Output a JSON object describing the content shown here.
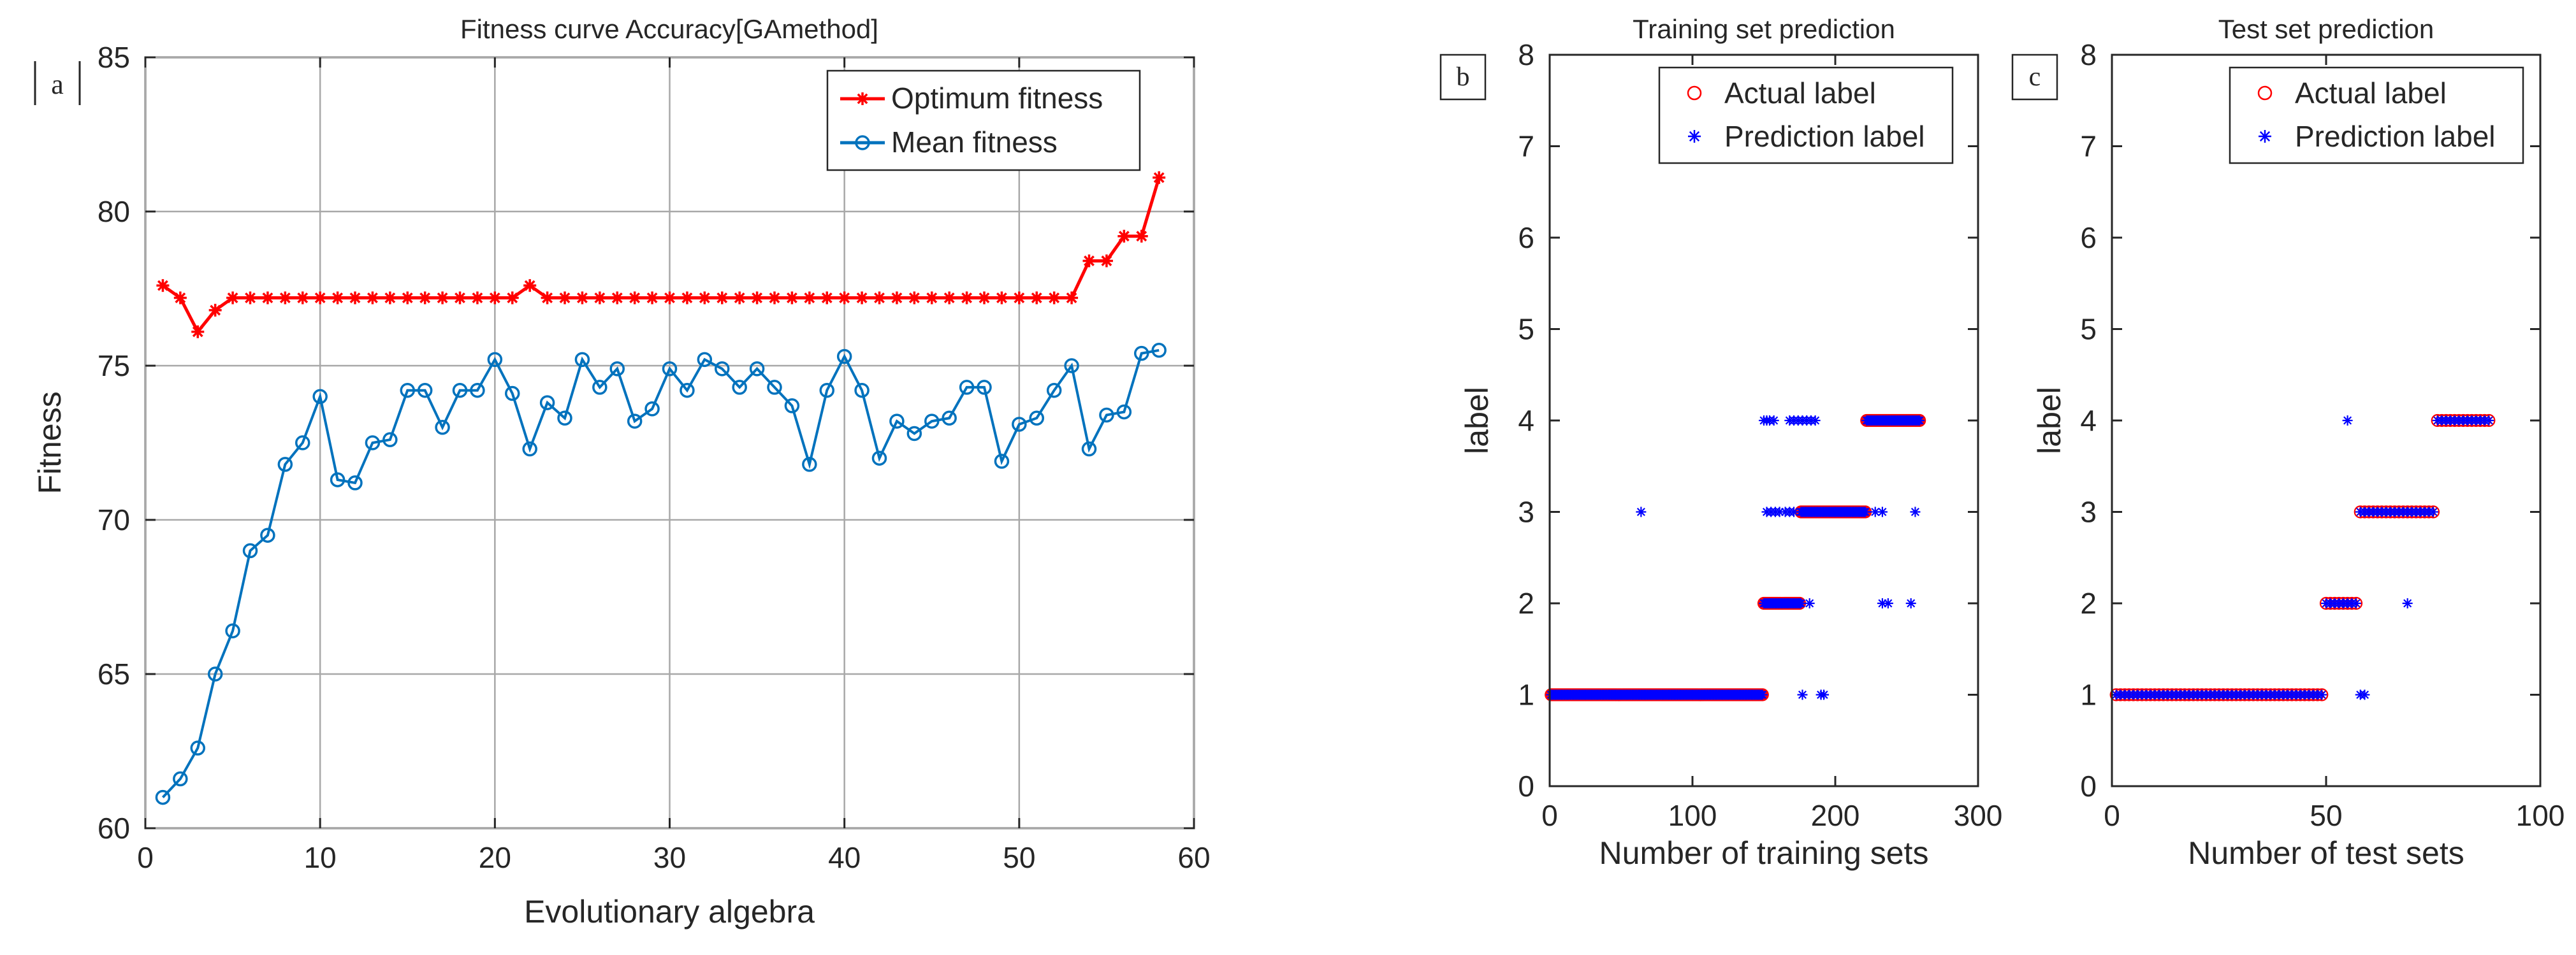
{
  "chart_data": [
    {
      "id": "a",
      "panel_label": "a",
      "type": "line",
      "title": "Fitness curve Accuracy[GAmethod]",
      "xlabel": "Evolutionary algebra",
      "ylabel": "Fitness",
      "xlim": [
        0,
        60
      ],
      "ylim": [
        60,
        85
      ],
      "xticks": [
        0,
        10,
        20,
        30,
        40,
        50,
        60
      ],
      "yticks": [
        60,
        65,
        70,
        75,
        80,
        85
      ],
      "grid": true,
      "legend_position": "top-right",
      "series": [
        {
          "name": "Optimum fitness",
          "color": "#ff0000",
          "marker": "star",
          "x": [
            1,
            2,
            3,
            4,
            5,
            6,
            7,
            8,
            9,
            10,
            11,
            12,
            13,
            14,
            15,
            16,
            17,
            18,
            19,
            20,
            21,
            22,
            23,
            24,
            25,
            26,
            27,
            28,
            29,
            30,
            31,
            32,
            33,
            34,
            35,
            36,
            37,
            38,
            39,
            40,
            41,
            42,
            43,
            44,
            45,
            46,
            47,
            48,
            49,
            50,
            51,
            52,
            53,
            54,
            55,
            56,
            57,
            58
          ],
          "values": [
            77.6,
            77.2,
            76.1,
            76.8,
            77.2,
            77.2,
            77.2,
            77.2,
            77.2,
            77.2,
            77.2,
            77.2,
            77.2,
            77.2,
            77.2,
            77.2,
            77.2,
            77.2,
            77.2,
            77.2,
            77.2,
            77.6,
            77.2,
            77.2,
            77.2,
            77.2,
            77.2,
            77.2,
            77.2,
            77.2,
            77.2,
            77.2,
            77.2,
            77.2,
            77.2,
            77.2,
            77.2,
            77.2,
            77.2,
            77.2,
            77.2,
            77.2,
            77.2,
            77.2,
            77.2,
            77.2,
            77.2,
            77.2,
            77.2,
            77.2,
            77.2,
            77.2,
            77.2,
            78.4,
            78.4,
            79.2,
            79.2,
            81.1
          ]
        },
        {
          "name": "Mean fitness",
          "color": "#0072bd",
          "marker": "circle",
          "x": [
            1,
            2,
            3,
            4,
            5,
            6,
            7,
            8,
            9,
            10,
            11,
            12,
            13,
            14,
            15,
            16,
            17,
            18,
            19,
            20,
            21,
            22,
            23,
            24,
            25,
            26,
            27,
            28,
            29,
            30,
            31,
            32,
            33,
            34,
            35,
            36,
            37,
            38,
            39,
            40,
            41,
            42,
            43,
            44,
            45,
            46,
            47,
            48,
            49,
            50,
            51,
            52,
            53,
            54,
            55,
            56,
            57,
            58
          ],
          "values": [
            61.0,
            61.6,
            62.6,
            65.0,
            66.4,
            69.0,
            69.5,
            71.8,
            72.5,
            74.0,
            71.3,
            71.2,
            72.5,
            72.6,
            74.2,
            74.2,
            73.0,
            74.2,
            74.2,
            75.2,
            74.1,
            72.3,
            73.8,
            73.3,
            75.2,
            74.3,
            74.9,
            73.2,
            73.6,
            74.9,
            74.2,
            75.2,
            74.9,
            74.3,
            74.9,
            74.3,
            73.7,
            71.8,
            74.2,
            75.3,
            74.2,
            72.0,
            73.2,
            72.8,
            73.2,
            73.3,
            74.3,
            74.3,
            71.9,
            73.1,
            73.3,
            74.2,
            75.0,
            72.3,
            73.4,
            73.5,
            75.4,
            75.5
          ]
        }
      ]
    },
    {
      "id": "b",
      "panel_label": "b",
      "type": "scatter",
      "title": "Training set prediction",
      "xlabel": "Number of training sets",
      "ylabel": "label",
      "xlim": [
        0,
        300
      ],
      "ylim": [
        0,
        8
      ],
      "xticks": [
        0,
        100,
        200,
        300
      ],
      "yticks": [
        0,
        1,
        2,
        3,
        4,
        5,
        6,
        7,
        8
      ],
      "grid": false,
      "legend_position": "top-right",
      "series": [
        {
          "name": "Actual label",
          "color": "#ff0000",
          "marker": "circle",
          "segments": [
            {
              "label": 1,
              "from": 1,
              "to": 149
            },
            {
              "label": 2,
              "from": 150,
              "to": 175
            },
            {
              "label": 3,
              "from": 176,
              "to": 221
            },
            {
              "label": 4,
              "from": 222,
              "to": 259
            }
          ]
        },
        {
          "name": "Prediction label",
          "color": "#0000ff",
          "marker": "asterisk",
          "segments": [
            {
              "label": 1,
              "from": 1,
              "to": 149
            },
            {
              "label": 2,
              "from": 150,
              "to": 175
            },
            {
              "label": 3,
              "from": 176,
              "to": 221
            },
            {
              "label": 4,
              "from": 222,
              "to": 259
            }
          ],
          "outliers": [
            {
              "x": 64,
              "y": 3
            },
            {
              "x": 150,
              "y": 4
            },
            {
              "x": 152,
              "y": 4
            },
            {
              "x": 154,
              "y": 4
            },
            {
              "x": 157,
              "y": 4
            },
            {
              "x": 168,
              "y": 4
            },
            {
              "x": 171,
              "y": 4
            },
            {
              "x": 174,
              "y": 4
            },
            {
              "x": 177,
              "y": 4
            },
            {
              "x": 180,
              "y": 4
            },
            {
              "x": 183,
              "y": 4
            },
            {
              "x": 186,
              "y": 4
            },
            {
              "x": 152,
              "y": 3
            },
            {
              "x": 155,
              "y": 3
            },
            {
              "x": 158,
              "y": 3
            },
            {
              "x": 161,
              "y": 3
            },
            {
              "x": 165,
              "y": 3
            },
            {
              "x": 168,
              "y": 3
            },
            {
              "x": 171,
              "y": 3
            },
            {
              "x": 228,
              "y": 3
            },
            {
              "x": 233,
              "y": 3
            },
            {
              "x": 256,
              "y": 3
            },
            {
              "x": 176,
              "y": 2
            },
            {
              "x": 182,
              "y": 2
            },
            {
              "x": 233,
              "y": 2
            },
            {
              "x": 237,
              "y": 2
            },
            {
              "x": 253,
              "y": 2
            },
            {
              "x": 177,
              "y": 1
            },
            {
              "x": 190,
              "y": 1
            },
            {
              "x": 192,
              "y": 1
            }
          ]
        }
      ]
    },
    {
      "id": "c",
      "panel_label": "c",
      "type": "scatter",
      "title": "Test set prediction",
      "xlabel": "Number of test sets",
      "ylabel": "label",
      "xlim": [
        0,
        100
      ],
      "ylim": [
        0,
        8
      ],
      "xticks": [
        0,
        50,
        100
      ],
      "yticks": [
        0,
        1,
        2,
        3,
        4,
        5,
        6,
        7,
        8
      ],
      "grid": false,
      "legend_position": "top-right",
      "series": [
        {
          "name": "Actual label",
          "color": "#ff0000",
          "marker": "circle",
          "segments": [
            {
              "label": 1,
              "from": 1,
              "to": 49
            },
            {
              "label": 2,
              "from": 50,
              "to": 57
            },
            {
              "label": 3,
              "from": 58,
              "to": 75
            },
            {
              "label": 4,
              "from": 76,
              "to": 88
            }
          ]
        },
        {
          "name": "Prediction label",
          "color": "#0000ff",
          "marker": "asterisk",
          "segments": [
            {
              "label": 1,
              "from": 1,
              "to": 49
            },
            {
              "label": 2,
              "from": 50,
              "to": 57
            },
            {
              "label": 3,
              "from": 58,
              "to": 75
            },
            {
              "label": 4,
              "from": 76,
              "to": 88
            }
          ],
          "outliers": [
            {
              "x": 55,
              "y": 4
            },
            {
              "x": 69,
              "y": 2
            },
            {
              "x": 58,
              "y": 1
            },
            {
              "x": 59,
              "y": 1
            }
          ]
        }
      ]
    }
  ]
}
